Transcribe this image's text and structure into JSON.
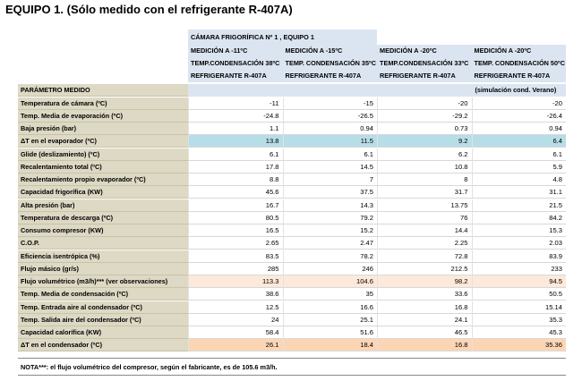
{
  "title": "EQUIPO 1. (Sólo medido con el refrigerante R-407A)",
  "header": {
    "group": "CÁMARA FRIGORÍFICA Nº 1 , EQUIPO 1",
    "columns": [
      {
        "line1": "MEDICIÓN A -11ºC",
        "line2": "TEMP.CONDENSACIÓN  38ºC",
        "line3": "REFRIGERANTE R-407A",
        "line4": ""
      },
      {
        "line1": "MEDICIÓN A -15ºC",
        "line2": "TEMP. CONDENSACIÓN 35ºC",
        "line3": "REFRIGERANTE R-407A",
        "line4": ""
      },
      {
        "line1": "MEDICIÓN A -20ºC",
        "line2": "TEMP.CONDENSACIÓN 33ºC",
        "line3": "REFRIGERANTE R-407A",
        "line4": ""
      },
      {
        "line1": "MEDICIÓN A -20ºC",
        "line2": "TEMP. CONDENSACIÓN 50ºC",
        "line3": "REFRIGERANTE R-407A",
        "line4": "(simulación cond. Verano)"
      }
    ],
    "param_label": "PARÁMETRO MEDIDO"
  },
  "rows": [
    {
      "label": "Temperatura de cámara (ºC)",
      "values": [
        "-11",
        "-15",
        "-20",
        "-20"
      ]
    },
    {
      "label": "Temp. Media de evaporación (ºC)",
      "values": [
        "-24.8",
        "-26.5",
        "-29.2",
        "-26.4"
      ]
    },
    {
      "label": "Baja presión (bar)",
      "values": [
        "1.1",
        "0.94",
        "0.73",
        "0.94"
      ]
    },
    {
      "label": "ΔT en el evaporador (ºC)",
      "values": [
        "13.8",
        "11.5",
        "9.2",
        "6.4"
      ],
      "hl": "blue"
    },
    {
      "label": "Glide (deslizamiento) (ºC)",
      "values": [
        "6.1",
        "6.1",
        "6.2",
        "6.1"
      ]
    },
    {
      "label": "Recalentamiento total (ºC)",
      "values": [
        "17.8",
        "14.5",
        "10.8",
        "5.9"
      ]
    },
    {
      "label": "Recalentamiento propio evaporador (ºC)",
      "values": [
        "8.8",
        "7",
        "8",
        "4.8"
      ]
    },
    {
      "label": "Capacidad frigorífica (KW)",
      "values": [
        "45.6",
        "37.5",
        "31.7",
        "31.1"
      ]
    },
    {
      "label": "Alta presión (bar)",
      "values": [
        "16.7",
        "14.3",
        "13.75",
        "21.5"
      ]
    },
    {
      "label": "Temperatura de descarga (ºC)",
      "values": [
        "80.5",
        "79.2",
        "76",
        "84.2"
      ]
    },
    {
      "label": "Consumo compresor (KW)",
      "values": [
        "16.5",
        "15.2",
        "14.4",
        "15.3"
      ]
    },
    {
      "label": "C.O.P.",
      "values": [
        "2.65",
        "2.47",
        "2.25",
        "2.03"
      ]
    },
    {
      "label": "Eficiencia isentrópica (%)",
      "values": [
        "83.5",
        "78.2",
        "72.8",
        "83.9"
      ]
    },
    {
      "label": "Flujo másico (gr/s)",
      "values": [
        "285",
        "246",
        "212.5",
        "233"
      ]
    },
    {
      "label": "Flujo volumétrico (m3/h)*** (ver observaciones)",
      "values": [
        "113.3",
        "104.6",
        "98.2",
        "94.5"
      ],
      "hl": "peach"
    },
    {
      "label": "Temp. Media de condensación (ºC)",
      "values": [
        "38.6",
        "35",
        "33.6",
        "50.5"
      ]
    },
    {
      "label": "Temp. Entrada aire al condensador (ºC)",
      "values": [
        "12.5",
        "16.6",
        "16.8",
        "15.14"
      ]
    },
    {
      "label": "Temp. Salida aire del condensador (ºC)",
      "values": [
        "24",
        "25.1",
        "24.1",
        "35.3"
      ]
    },
    {
      "label": "Capacidad calorífica (KW)",
      "values": [
        "58.4",
        "51.6",
        "46.5",
        "45.3"
      ]
    },
    {
      "label": "ΔT en el condensador (ºC)",
      "values": [
        "26.1",
        "18.4",
        "16.8",
        "35.36"
      ],
      "hl": "orange"
    }
  ],
  "note": "NOTA***: el flujo volumétrico del compresor, según el fabricante, es de 105.6 m3/h.",
  "colors": {
    "header_blue": "#dbe5f1",
    "label_bg": "#ddd9c4",
    "highlight_blue": "#b7dde8",
    "highlight_orange": "#fcd5b5",
    "highlight_peach": "#fde9d9"
  }
}
